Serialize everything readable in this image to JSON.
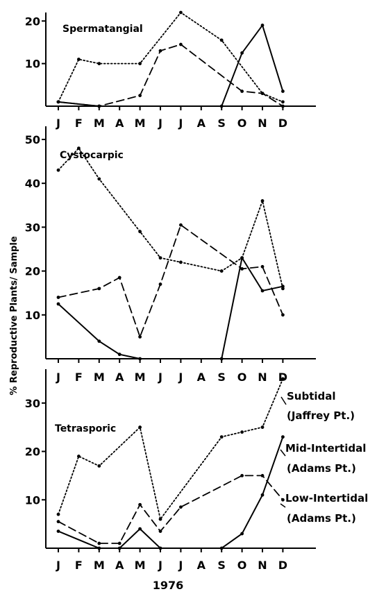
{
  "figure": {
    "ylabel": "% Reproductive Plants/ Sample",
    "xlabel": "1976"
  },
  "legend": {
    "subtidal": [
      "Subtidal",
      "(Jaffrey Pt.)"
    ],
    "mid": [
      "Mid-Intertidal",
      "(Adams Pt.)"
    ],
    "low": [
      "Low-Intertidal",
      "(Adams Pt.)"
    ]
  },
  "chart_data": [
    {
      "type": "line",
      "title": "Spermatangial",
      "categories": [
        "J",
        "F",
        "M",
        "A",
        "M",
        "J",
        "J",
        "A",
        "S",
        "O",
        "N",
        "D"
      ],
      "yticks": [
        10,
        20
      ],
      "ylim": [
        0,
        22
      ],
      "series": [
        {
          "name": "Subtidal (Jaffrey Pt.)",
          "style": "dotted",
          "values": [
            1,
            11,
            10,
            null,
            10,
            null,
            22,
            null,
            15.5,
            null,
            3,
            1
          ]
        },
        {
          "name": "Low-Intertidal (Adams Pt.)",
          "style": "dashed",
          "values": [
            1,
            null,
            0,
            null,
            2.5,
            13,
            14.5,
            null,
            null,
            3.5,
            3,
            0
          ]
        },
        {
          "name": "Mid-Intertidal (Adams Pt.)",
          "style": "solid",
          "values": [
            1,
            null,
            0,
            null,
            null,
            null,
            null,
            null,
            0,
            12.5,
            19,
            3.5
          ]
        }
      ]
    },
    {
      "type": "line",
      "title": "Cystocarpic",
      "categories": [
        "J",
        "F",
        "M",
        "A",
        "M",
        "J",
        "J",
        "A",
        "S",
        "O",
        "N",
        "D"
      ],
      "yticks": [
        10,
        20,
        30,
        40,
        50
      ],
      "ylim": [
        0,
        53
      ],
      "series": [
        {
          "name": "Subtidal (Jaffrey Pt.)",
          "style": "dotted",
          "values": [
            43,
            48,
            41,
            null,
            29,
            23,
            22,
            null,
            20,
            23,
            36,
            16
          ]
        },
        {
          "name": "Low-Intertidal (Adams Pt.)",
          "style": "dashed",
          "values": [
            14,
            null,
            16,
            18.5,
            5,
            17,
            30.5,
            null,
            null,
            20.5,
            21,
            10
          ]
        },
        {
          "name": "Mid-Intertidal (Adams Pt.)",
          "style": "solid",
          "values": [
            12.5,
            null,
            4,
            1,
            0,
            null,
            null,
            null,
            0,
            23,
            15.5,
            16.5
          ]
        }
      ]
    },
    {
      "type": "line",
      "title": "Tetrasporic",
      "categories": [
        "J",
        "F",
        "M",
        "A",
        "M",
        "J",
        "J",
        "A",
        "S",
        "O",
        "N",
        "D"
      ],
      "yticks": [
        10,
        20,
        30
      ],
      "ylim": [
        0,
        37
      ],
      "series": [
        {
          "name": "Subtidal (Jaffrey Pt.)",
          "style": "dotted",
          "values": [
            7,
            19,
            17,
            null,
            25,
            6,
            null,
            null,
            23,
            24,
            25,
            35
          ]
        },
        {
          "name": "Low-Intertidal (Adams Pt.)",
          "style": "dashed",
          "values": [
            5.5,
            null,
            1,
            1,
            9,
            3.5,
            8.5,
            null,
            null,
            15,
            15,
            10
          ]
        },
        {
          "name": "Mid-Intertidal (Adams Pt.)",
          "style": "solid",
          "values": [
            3.5,
            null,
            0,
            0,
            4,
            0,
            null,
            null,
            0,
            3,
            11,
            23
          ]
        }
      ]
    }
  ]
}
